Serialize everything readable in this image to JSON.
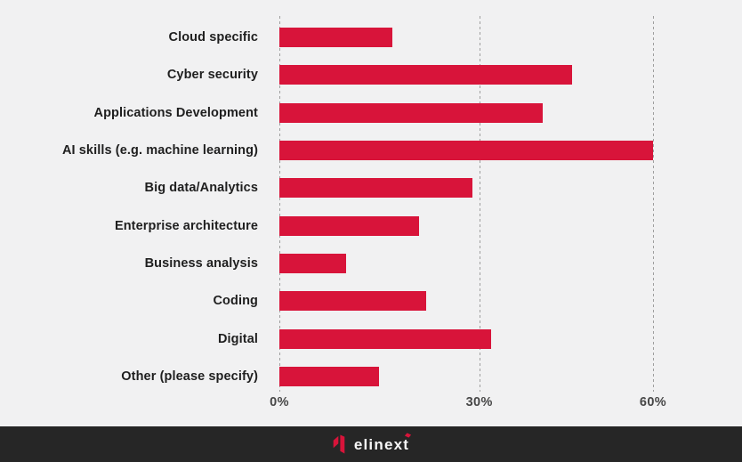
{
  "chart_data": {
    "type": "bar",
    "orientation": "horizontal",
    "title": "",
    "categories": [
      "Cloud specific",
      "Cyber security",
      "Applications Development",
      "AI skills (e.g. machine learning)",
      "Big data/Analytics",
      "Enterprise architecture",
      "Business analysis",
      "Coding",
      "Digital",
      "Other (please specify)"
    ],
    "values": [
      17,
      46,
      41,
      60,
      29,
      21,
      10,
      22,
      32,
      15
    ],
    "unit": "%",
    "xlabel": "",
    "ylabel": "",
    "axis": {
      "range": [
        0,
        60
      ],
      "ticks": [
        {
          "label": "0%",
          "value": 0
        },
        {
          "label": "30%",
          "value": 30
        },
        {
          "label": "60%",
          "value": 60
        }
      ],
      "gridlines": "vertical-dashed"
    },
    "legend": "none",
    "bar_color": "#d8143a"
  },
  "footer": {
    "logo_text": "elinext"
  },
  "colors": {
    "background": "#f1f1f2",
    "bar": "#d8143a",
    "label_text": "#1f1f1f",
    "tick_text": "#474747",
    "gridline": "#9e9e9e",
    "footer_background": "#262626",
    "logo_text": "#f7f7f7",
    "logo_red": "#d8143a"
  }
}
